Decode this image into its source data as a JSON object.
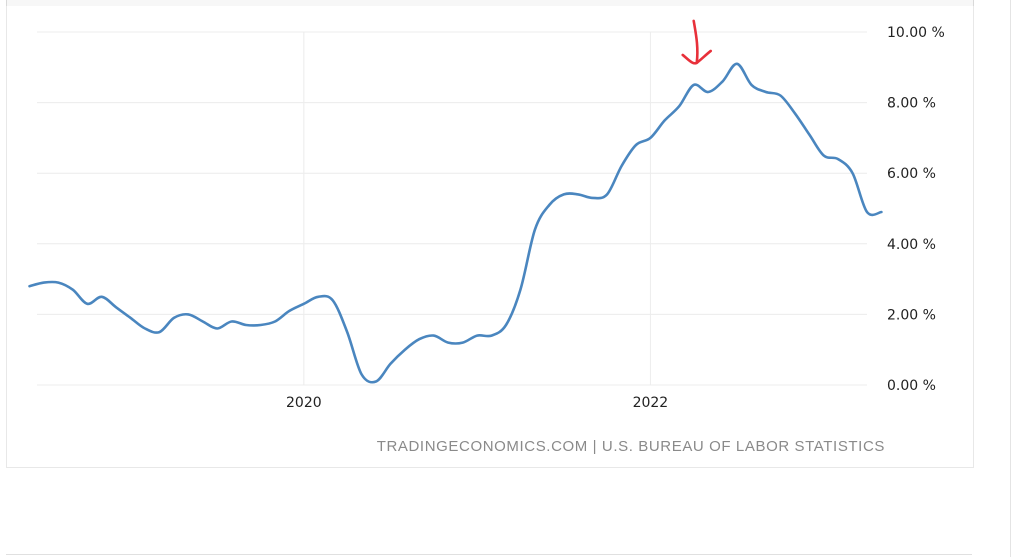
{
  "colors": {
    "line": "#4a86bf",
    "grid": "#ececec",
    "annotation": "#e8303a"
  },
  "source_text": "TRADINGECONOMICS.COM | U.S. BUREAU OF LABOR STATISTICS",
  "chart_data": {
    "type": "line",
    "title": "",
    "xlabel": "",
    "ylabel": "",
    "x_ticks": [
      "2020",
      "2022"
    ],
    "y_ticks": [
      "0.00 %",
      "2.00 %",
      "4.00 %",
      "6.00 %",
      "8.00 %",
      "10.00 %"
    ],
    "ylim": [
      0,
      10
    ],
    "xlim": [
      2018.46,
      2023.25
    ],
    "grid": true,
    "y_axis_side": "right",
    "series": [
      {
        "values": [
          {
            "x": "2018-06",
            "y": 2.8
          },
          {
            "x": "2018-07",
            "y": 2.9
          },
          {
            "x": "2018-08",
            "y": 2.9
          },
          {
            "x": "2018-09",
            "y": 2.7
          },
          {
            "x": "2018-10",
            "y": 2.3
          },
          {
            "x": "2018-11",
            "y": 2.5
          },
          {
            "x": "2018-12",
            "y": 2.2
          },
          {
            "x": "2019-01",
            "y": 1.9
          },
          {
            "x": "2019-02",
            "y": 1.6
          },
          {
            "x": "2019-03",
            "y": 1.5
          },
          {
            "x": "2019-04",
            "y": 1.9
          },
          {
            "x": "2019-05",
            "y": 2.0
          },
          {
            "x": "2019-06",
            "y": 1.8
          },
          {
            "x": "2019-07",
            "y": 1.6
          },
          {
            "x": "2019-08",
            "y": 1.8
          },
          {
            "x": "2019-09",
            "y": 1.7
          },
          {
            "x": "2019-10",
            "y": 1.7
          },
          {
            "x": "2019-11",
            "y": 1.8
          },
          {
            "x": "2019-12",
            "y": 2.1
          },
          {
            "x": "2020-01",
            "y": 2.3
          },
          {
            "x": "2020-02",
            "y": 2.5
          },
          {
            "x": "2020-03",
            "y": 2.4
          },
          {
            "x": "2020-04",
            "y": 1.5
          },
          {
            "x": "2020-05",
            "y": 0.3
          },
          {
            "x": "2020-06",
            "y": 0.1
          },
          {
            "x": "2020-07",
            "y": 0.6
          },
          {
            "x": "2020-08",
            "y": 1.0
          },
          {
            "x": "2020-09",
            "y": 1.3
          },
          {
            "x": "2020-10",
            "y": 1.4
          },
          {
            "x": "2020-11",
            "y": 1.2
          },
          {
            "x": "2020-12",
            "y": 1.2
          },
          {
            "x": "2021-01",
            "y": 1.4
          },
          {
            "x": "2021-02",
            "y": 1.4
          },
          {
            "x": "2021-03",
            "y": 1.7
          },
          {
            "x": "2021-04",
            "y": 2.7
          },
          {
            "x": "2021-05",
            "y": 4.4
          },
          {
            "x": "2021-06",
            "y": 5.1
          },
          {
            "x": "2021-07",
            "y": 5.4
          },
          {
            "x": "2021-08",
            "y": 5.4
          },
          {
            "x": "2021-09",
            "y": 5.3
          },
          {
            "x": "2021-10",
            "y": 5.4
          },
          {
            "x": "2021-11",
            "y": 6.2
          },
          {
            "x": "2021-12",
            "y": 6.8
          },
          {
            "x": "2022-01",
            "y": 7.0
          },
          {
            "x": "2022-02",
            "y": 7.5
          },
          {
            "x": "2022-03",
            "y": 7.9
          },
          {
            "x": "2022-04",
            "y": 8.5
          },
          {
            "x": "2022-05",
            "y": 8.3
          },
          {
            "x": "2022-06",
            "y": 8.6
          },
          {
            "x": "2022-07",
            "y": 9.1
          },
          {
            "x": "2022-08",
            "y": 8.5
          },
          {
            "x": "2022-09",
            "y": 8.3
          },
          {
            "x": "2022-10",
            "y": 8.2
          },
          {
            "x": "2022-11",
            "y": 7.7
          },
          {
            "x": "2022-12",
            "y": 7.1
          },
          {
            "x": "2023-01",
            "y": 6.5
          },
          {
            "x": "2023-02",
            "y": 6.4
          },
          {
            "x": "2023-03",
            "y": 6.0
          },
          {
            "x": "2023-04",
            "y": 4.9
          },
          {
            "x": "2023-05",
            "y": 4.9
          }
        ]
      }
    ],
    "annotations": [
      {
        "type": "hand-drawn-arrow",
        "points_to": {
          "x": "2022-04",
          "y": 8.5
        }
      }
    ]
  }
}
